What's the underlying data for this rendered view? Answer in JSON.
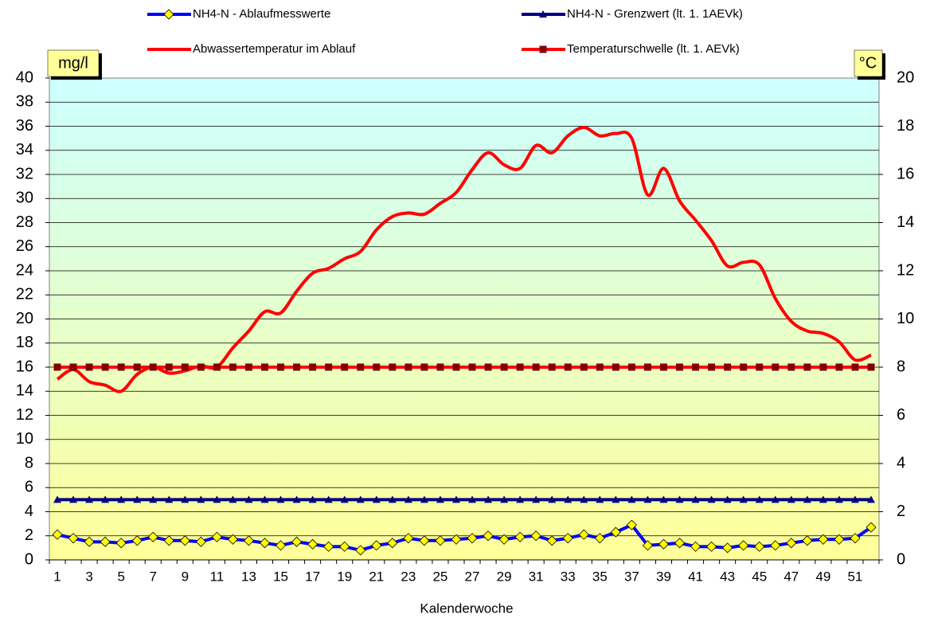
{
  "chart_data": {
    "type": "line",
    "xlabel": "Kalenderwoche",
    "ylabel": "mg/l",
    "y2label": "°C",
    "categories": [
      1,
      null,
      3,
      null,
      5,
      null,
      7,
      null,
      9,
      null,
      11,
      null,
      13,
      null,
      15,
      null,
      17,
      null,
      19,
      null,
      21,
      null,
      23,
      null,
      25,
      null,
      27,
      null,
      29,
      null,
      31,
      null,
      33,
      null,
      35,
      null,
      37,
      null,
      39,
      null,
      41,
      null,
      43,
      null,
      45,
      null,
      47,
      null,
      49,
      null,
      51,
      null
    ],
    "ylim": [
      0,
      40
    ],
    "yticks": [
      0,
      2,
      4,
      6,
      8,
      10,
      12,
      14,
      16,
      18,
      20,
      22,
      24,
      26,
      28,
      30,
      32,
      34,
      36,
      38,
      40
    ],
    "y2lim": [
      0,
      20
    ],
    "y2ticks": [
      0,
      2,
      4,
      6,
      8,
      10,
      12,
      14,
      16,
      18,
      20
    ],
    "grid": true,
    "series": [
      {
        "name": "NH4-N - Ablaufmesswerte",
        "color": "#0000ff",
        "marker": "diamond",
        "marker_color": "#ffff00",
        "values": [
          2.1,
          1.8,
          1.5,
          1.5,
          1.4,
          1.6,
          1.9,
          1.6,
          1.6,
          1.5,
          1.9,
          1.7,
          1.6,
          1.4,
          1.2,
          1.5,
          1.3,
          1.1,
          1.1,
          0.8,
          1.2,
          1.4,
          1.8,
          1.6,
          1.6,
          1.7,
          1.8,
          2.0,
          1.7,
          1.9,
          2.0,
          1.6,
          1.8,
          2.1,
          1.8,
          2.3,
          2.9,
          1.2,
          1.3,
          1.4,
          1.1,
          1.1,
          1.0,
          1.2,
          1.1,
          1.2,
          1.4,
          1.6,
          1.7,
          1.7,
          1.8,
          2.7
        ]
      },
      {
        "name": "NH4-N - Grenzwert (lt. 1. 1AEVk)",
        "color": "#000080",
        "marker": "triangle",
        "marker_color": "#000080",
        "values": [
          5,
          5,
          5,
          5,
          5,
          5,
          5,
          5,
          5,
          5,
          5,
          5,
          5,
          5,
          5,
          5,
          5,
          5,
          5,
          5,
          5,
          5,
          5,
          5,
          5,
          5,
          5,
          5,
          5,
          5,
          5,
          5,
          5,
          5,
          5,
          5,
          5,
          5,
          5,
          5,
          5,
          5,
          5,
          5,
          5,
          5,
          5,
          5,
          5,
          5,
          5,
          5
        ]
      },
      {
        "name": "Abwassertemperatur im Ablauf",
        "color": "#ff0000",
        "axis": "y2",
        "smooth": true,
        "values": [
          7.5,
          7.9,
          7.4,
          7.25,
          7.0,
          7.7,
          8.0,
          7.75,
          7.85,
          8.05,
          8.0,
          8.8,
          9.5,
          10.3,
          10.25,
          11.15,
          11.9,
          12.1,
          12.5,
          12.8,
          13.7,
          14.25,
          14.4,
          14.35,
          14.8,
          15.25,
          16.2,
          16.9,
          16.4,
          16.25,
          17.2,
          16.9,
          17.6,
          17.95,
          17.6,
          17.7,
          17.5,
          15.15,
          16.25,
          14.9,
          14.1,
          13.25,
          12.2,
          12.35,
          12.25,
          10.85,
          9.9,
          9.5,
          9.4,
          9.05,
          8.3,
          8.5
        ]
      },
      {
        "name": "Temperaturschwelle (lt. 1. AEVk)",
        "color": "#ff0000",
        "axis": "y2",
        "marker": "square",
        "marker_color": "#800000",
        "values": [
          8,
          8,
          8,
          8,
          8,
          8,
          8,
          8,
          8,
          8,
          8,
          8,
          8,
          8,
          8,
          8,
          8,
          8,
          8,
          8,
          8,
          8,
          8,
          8,
          8,
          8,
          8,
          8,
          8,
          8,
          8,
          8,
          8,
          8,
          8,
          8,
          8,
          8,
          8,
          8,
          8,
          8,
          8,
          8,
          8,
          8,
          8,
          8,
          8,
          8,
          8,
          8
        ]
      }
    ]
  }
}
